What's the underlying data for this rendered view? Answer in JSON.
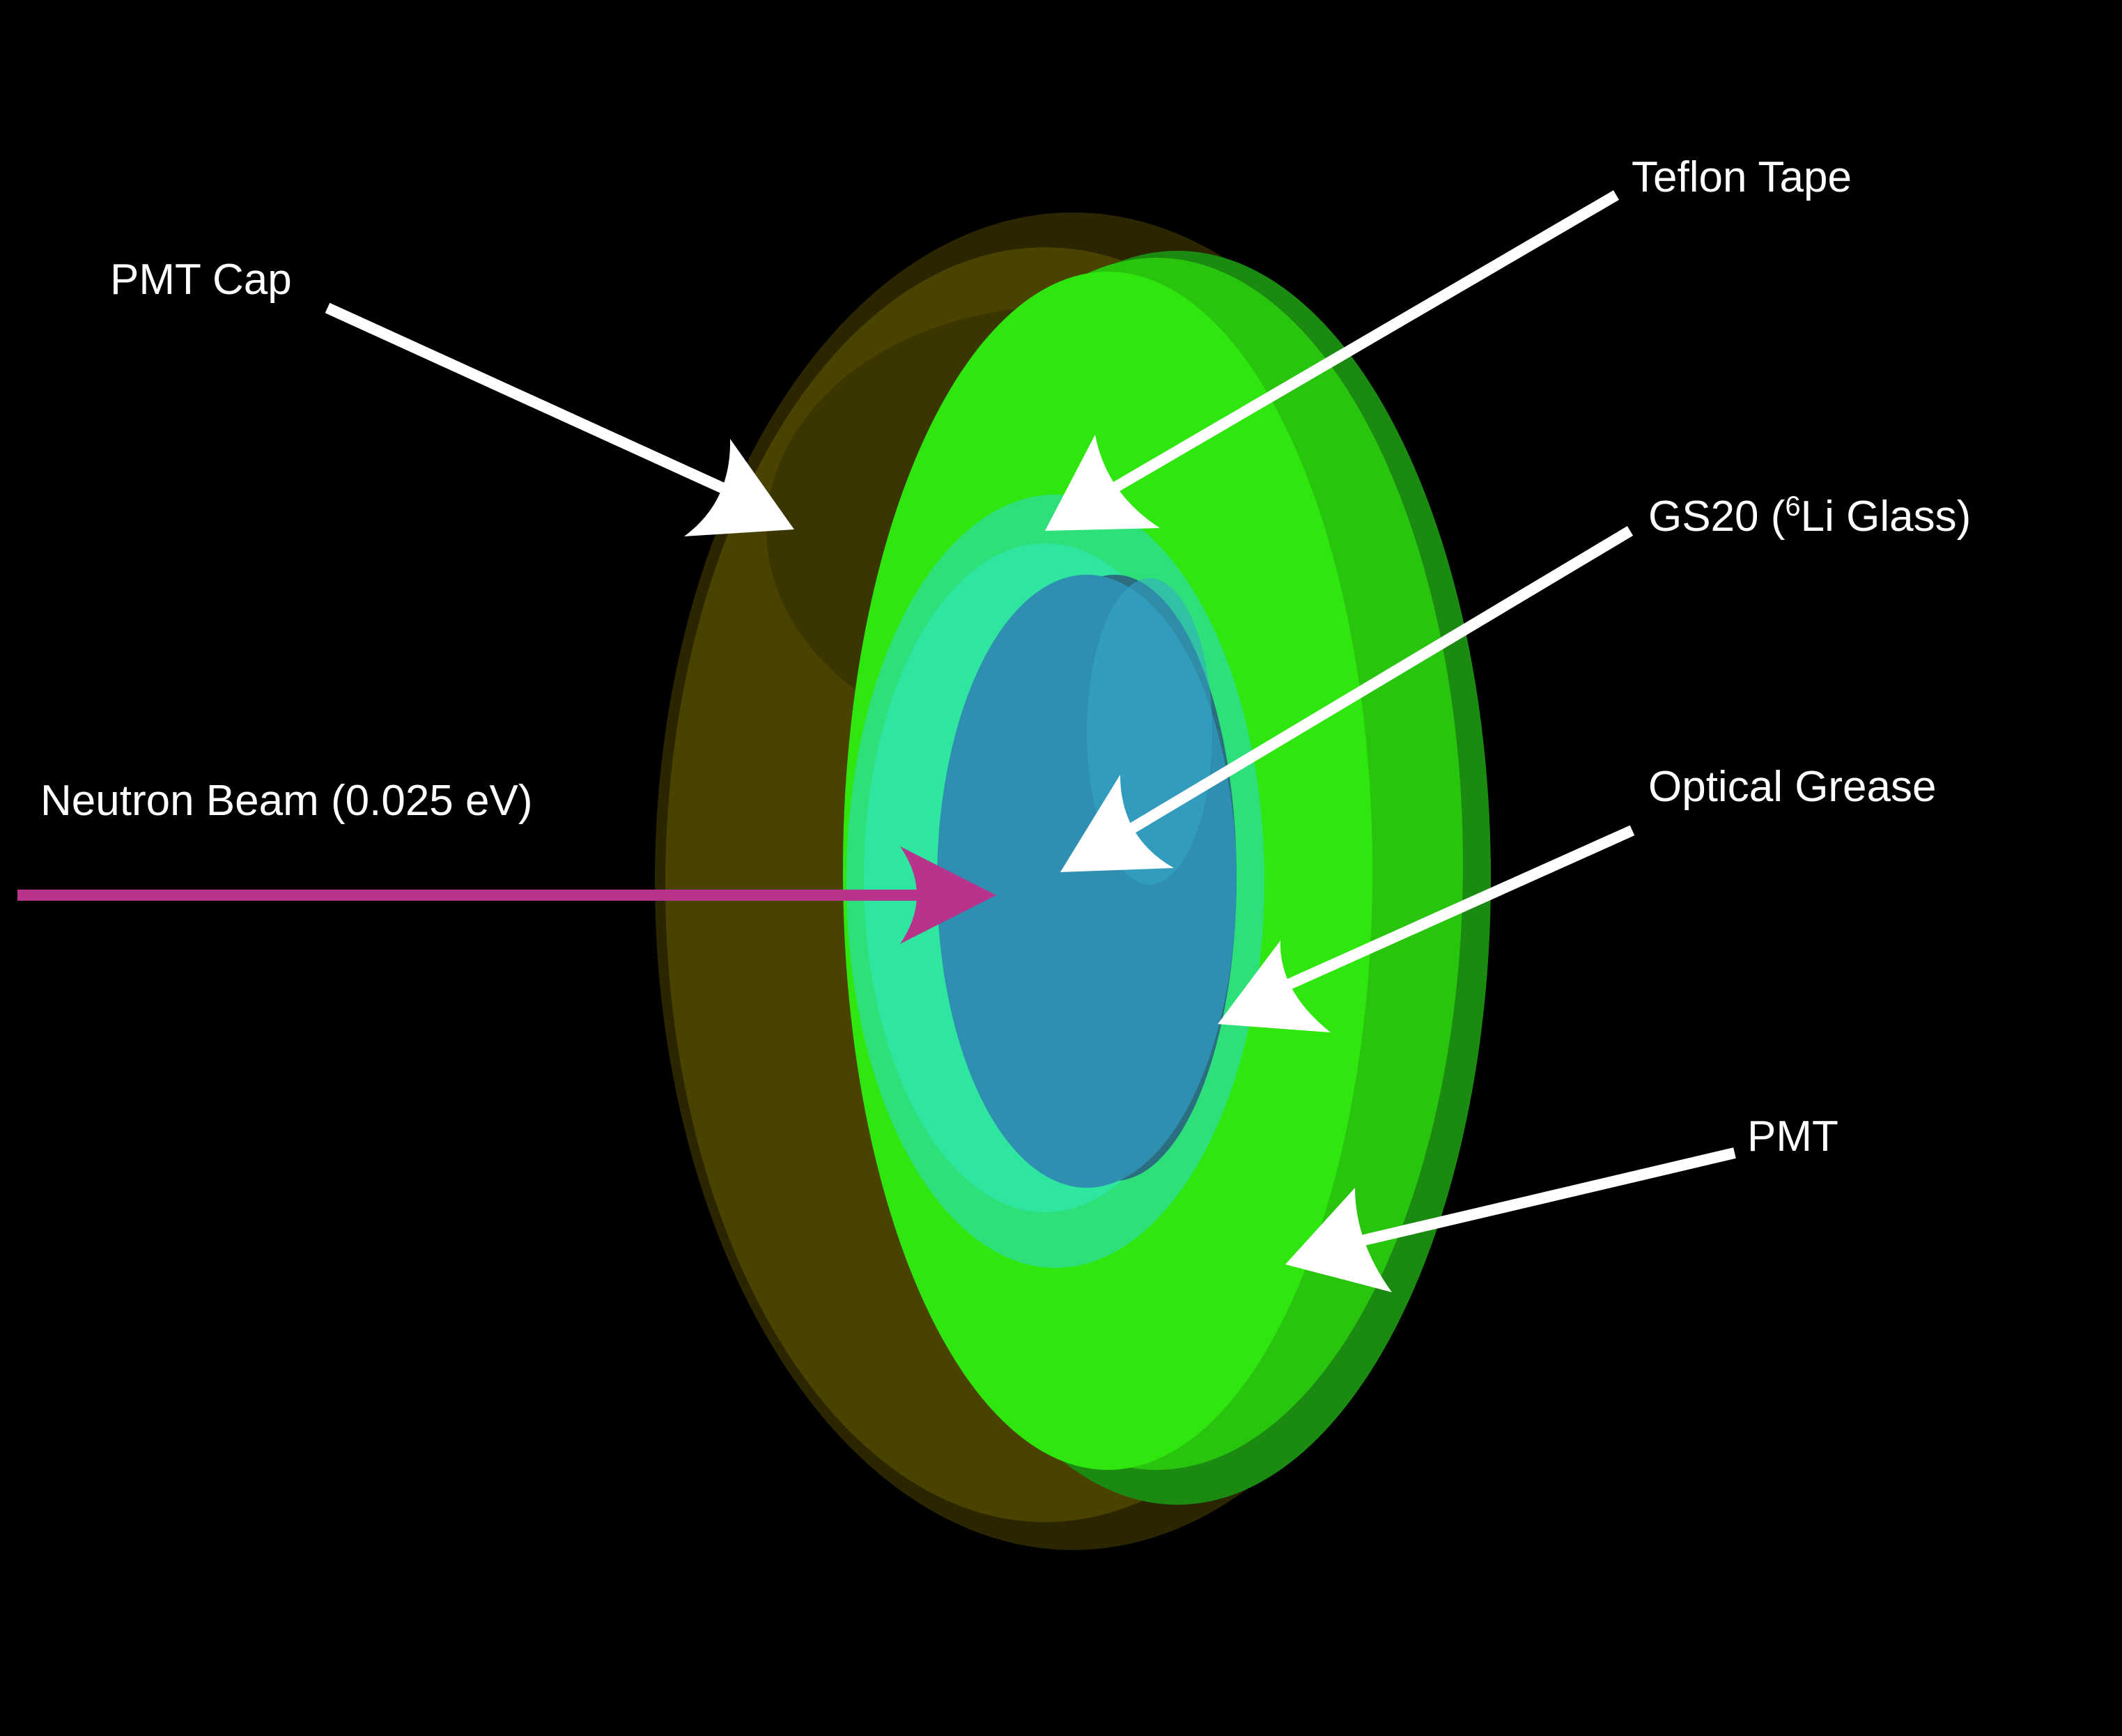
{
  "colors": {
    "background": "#000000",
    "pmt_cap": "#4a4300",
    "pmt_cap_dark": "#2b2600",
    "pmt_green": "#2fe60f",
    "pmt_green_dark": "#1a8a10",
    "teflon_tape": "#2ee07a",
    "optical_grease": "#2ee6a0",
    "gs20_glass": "#2e8fb0",
    "beam": "#b8338c",
    "callout": "#ffffff"
  },
  "labels": {
    "pmt_cap": "PMT Cap",
    "teflon_tape": "Teflon Tape",
    "gs20_prefix": "GS20 (",
    "gs20_superscript": "6",
    "gs20_suffix": "Li Glass)",
    "neutron_beam": "Neutron Beam (0.025 eV)",
    "optical_grease": "Optical Grease",
    "pmt": "PMT"
  }
}
